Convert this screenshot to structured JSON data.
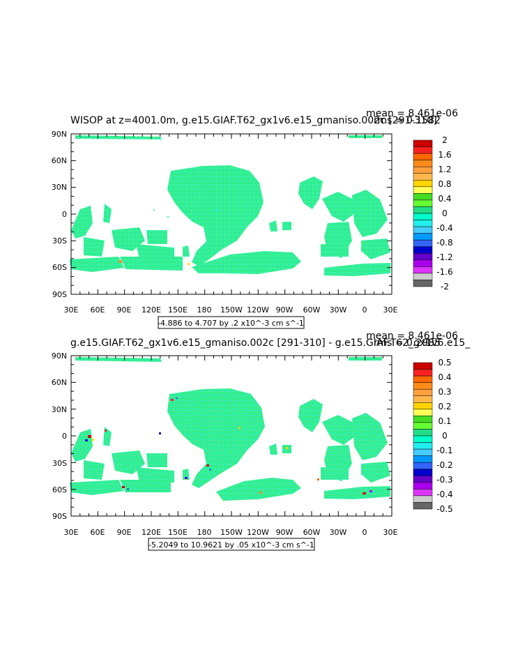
{
  "chart_data": [
    {
      "type": "heatmap",
      "title": "WISOP at z=4001.0m, g.e15.GIAF.T62_gx1v6.e15_gmaniso.002c [291-310]",
      "stats": {
        "mean": "mean = 8.461e-06",
        "rms": "rms = 0.1582"
      },
      "x_ticks": [
        "30E",
        "60E",
        "90E",
        "120E",
        "150E",
        "180",
        "150W",
        "120W",
        "90W",
        "60W",
        "30W",
        "0",
        "30E"
      ],
      "y_ticks": [
        "90N",
        "60N",
        "30N",
        "0",
        "30S",
        "60S",
        "90S"
      ],
      "range_label": "-4.886 to 4.707 by .2 x10^-3 cm s^-1",
      "colorbar": {
        "labels": [
          "2",
          "1.6",
          "1.2",
          "0.8",
          "0.4",
          "0",
          "-0.4",
          "-0.8",
          "-1.2",
          "-1.6",
          "-2"
        ],
        "colors": [
          "#cc0000",
          "#ff2020",
          "#ff6600",
          "#ff8c1a",
          "#ffa040",
          "#ffb84d",
          "#ffd400",
          "#ffff55",
          "#44dd22",
          "#66ff33",
          "#22dd88",
          "#00ffcc",
          "#22eeee",
          "#44ccff",
          "#0099ff",
          "#3366ff",
          "#0000cc",
          "#6600cc",
          "#aa00ee",
          "#dd33ff",
          "#cccccc",
          "#666666"
        ]
      },
      "dominant_value": 0,
      "dominant_color": "#33ee88",
      "speckle_color": "#22eeee"
    },
    {
      "type": "heatmap",
      "title": "g.e15.GIAF.T62_gx1v6.e15_gmaniso.002c [291-310] - g.e15.GIAF.T62_gx1v6.e15_",
      "stats": {
        "mean": "mean = 8.461e-06",
        "rms": "rms = 0.2985"
      },
      "x_ticks": [
        "30E",
        "60E",
        "90E",
        "120E",
        "150E",
        "180",
        "150W",
        "120W",
        "90W",
        "60W",
        "30W",
        "0",
        "30E"
      ],
      "y_ticks": [
        "90N",
        "60N",
        "30N",
        "0",
        "30S",
        "60S",
        "90S"
      ],
      "range_label": "-5.2049 to 10.9621 by .05 x10^-3 cm s^-1",
      "colorbar": {
        "labels": [
          "0.5",
          "0.4",
          "0.3",
          "0.2",
          "0.1",
          "0",
          "-0.1",
          "-0.2",
          "-0.3",
          "-0.4",
          "-0.5"
        ],
        "colors": [
          "#cc0000",
          "#ff2020",
          "#ff6600",
          "#ff8c1a",
          "#ffa040",
          "#ffb84d",
          "#ffd400",
          "#ffff55",
          "#44dd22",
          "#66ff33",
          "#22dd88",
          "#00ffcc",
          "#22eeee",
          "#44ccff",
          "#0099ff",
          "#3366ff",
          "#0000cc",
          "#6600cc",
          "#aa00ee",
          "#dd33ff",
          "#cccccc",
          "#666666"
        ]
      },
      "dominant_value": 0,
      "dominant_color": "#33ee88",
      "speckle_color": "#22eeee"
    }
  ]
}
